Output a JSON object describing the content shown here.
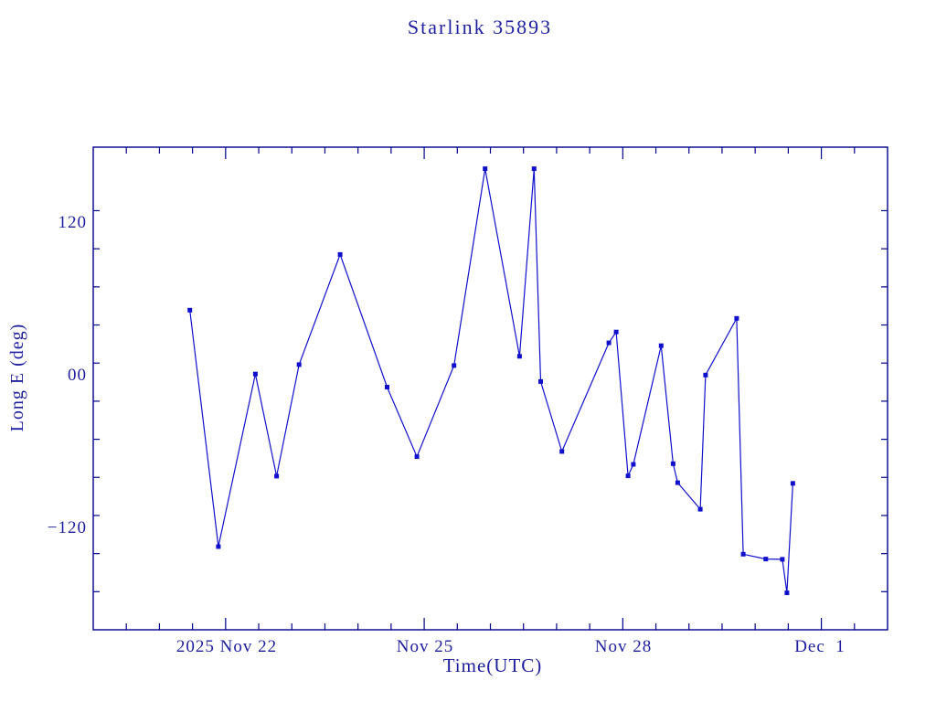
{
  "title": "Starlink 35893",
  "colors": {
    "background": "#FFFFFF",
    "axis": "#00008B",
    "text": "#1E1E9E",
    "data": "#1010CC"
  },
  "chart_data": {
    "type": "line",
    "title": "Starlink 35893",
    "xlabel": "Time(UTC)",
    "ylabel": "Long E (deg)",
    "x_tick_labels": [
      "2025 Nov 22",
      "Nov 25",
      "Nov 28",
      "Dec  1"
    ],
    "x_tick_days_from_nov20": [
      2,
      5,
      8,
      11
    ],
    "x_minor_step_days": 0.5,
    "x_range_days": [
      0,
      12
    ],
    "y_tick_labels": [
      "120",
      "00",
      "−120"
    ],
    "y_major_ticks": [
      120,
      0,
      -120
    ],
    "y_minor_step": 30,
    "ylim": [
      -200,
      180
    ],
    "grid": false,
    "legend": null,
    "marker": "filled-square",
    "series": [
      {
        "name": "Long E (deg)",
        "points_day_deg": [
          [
            1.46,
            51.7
          ],
          [
            1.89,
            -134.5
          ],
          [
            2.45,
            1.4
          ],
          [
            2.77,
            -79.0
          ],
          [
            3.11,
            8.8
          ],
          [
            3.73,
            95.5
          ],
          [
            4.44,
            -8.9
          ],
          [
            4.89,
            -63.7
          ],
          [
            5.45,
            8.1
          ],
          [
            5.92,
            163.0
          ],
          [
            6.44,
            15.3
          ],
          [
            6.66,
            163.0
          ],
          [
            6.76,
            -4.5
          ],
          [
            7.08,
            -59.6
          ],
          [
            7.79,
            25.9
          ],
          [
            7.9,
            34.5
          ],
          [
            8.08,
            -78.8
          ],
          [
            8.16,
            -69.7
          ],
          [
            8.58,
            23.7
          ],
          [
            8.76,
            -69.2
          ],
          [
            8.83,
            -84.2
          ],
          [
            9.17,
            -105.1
          ],
          [
            9.25,
            0.6
          ],
          [
            9.72,
            45.2
          ],
          [
            9.82,
            -140.5
          ],
          [
            10.16,
            -144.3
          ],
          [
            10.41,
            -144.5
          ],
          [
            10.48,
            -170.9
          ],
          [
            10.57,
            -84.7
          ]
        ]
      }
    ]
  }
}
